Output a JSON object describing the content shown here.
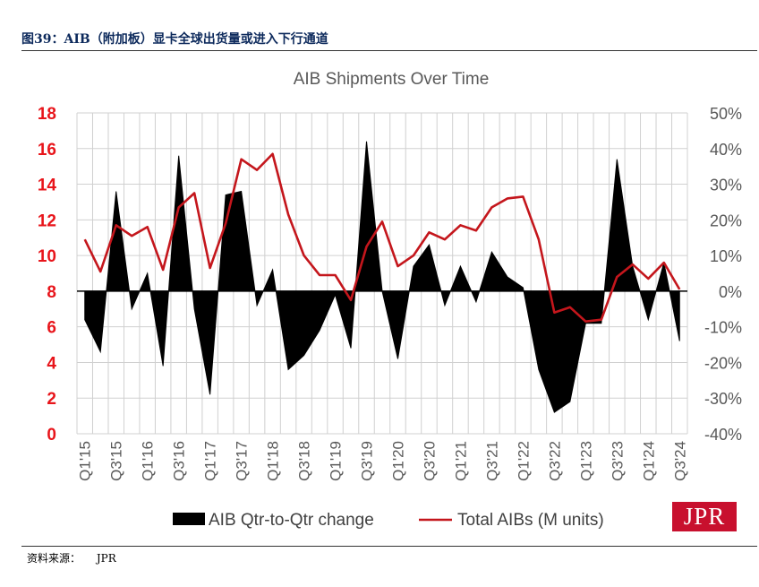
{
  "figure_title": "图39：AIB（附加板）显卡全球出货量或进入下行通道",
  "source_label": "资料来源：",
  "source_value": "JPR",
  "logo_text": "JPR",
  "colors": {
    "left_axis": "#e8151b",
    "line": "#c4161c",
    "area": "#000000",
    "grid": "#d0d0d0",
    "text": "#595959"
  },
  "chart_data": {
    "type": "area+line",
    "title": "AIB Shipments Over Time",
    "grid": true,
    "legend_position": "bottom",
    "left_axis": {
      "ylim": [
        0,
        18
      ],
      "ticks": [
        "0",
        "2",
        "4",
        "6",
        "8",
        "10",
        "12",
        "14",
        "16",
        "18"
      ]
    },
    "right_axis": {
      "ylim": [
        -40,
        50
      ],
      "ticks": [
        "-40%",
        "-30%",
        "-20%",
        "-10%",
        "0%",
        "10%",
        "20%",
        "30%",
        "40%",
        "50%"
      ]
    },
    "x_tick_labels": [
      "Q1'15",
      "Q3'15",
      "Q1'16",
      "Q3'16",
      "Q1'17",
      "Q3'17",
      "Q1'18",
      "Q3'18",
      "Q1'19",
      "Q3'19",
      "Q1'20",
      "Q3'20",
      "Q1'21",
      "Q3'21",
      "Q1'22",
      "Q3'22",
      "Q1'23",
      "Q3'23",
      "Q1'24",
      "Q3'24"
    ],
    "x": [
      "Q1'15",
      "Q2'15",
      "Q3'15",
      "Q4'15",
      "Q1'16",
      "Q2'16",
      "Q3'16",
      "Q4'16",
      "Q1'17",
      "Q2'17",
      "Q3'17",
      "Q4'17",
      "Q1'18",
      "Q2'18",
      "Q3'18",
      "Q4'18",
      "Q1'19",
      "Q2'19",
      "Q3'19",
      "Q4'19",
      "Q1'20",
      "Q2'20",
      "Q3'20",
      "Q4'20",
      "Q1'21",
      "Q2'21",
      "Q3'21",
      "Q4'21",
      "Q1'22",
      "Q2'22",
      "Q3'22",
      "Q4'22",
      "Q1'23",
      "Q2'23",
      "Q3'23",
      "Q4'23",
      "Q1'24",
      "Q2'24",
      "Q3'24"
    ],
    "series": [
      {
        "name": "AIB Qtr-to-Qtr change",
        "kind": "area",
        "axis": "right",
        "values": [
          -8,
          -17,
          28,
          -5,
          5,
          -21,
          38,
          -5,
          -29,
          27,
          28,
          -4,
          6,
          -22,
          -18,
          -11,
          -1,
          -16,
          42,
          0,
          -19,
          7,
          13,
          -4,
          7,
          -3,
          11,
          4,
          1,
          -22,
          -34,
          -31,
          -9,
          -9,
          37,
          7,
          -8,
          8,
          -14
        ]
      },
      {
        "name": "Total AIBs (M units)",
        "kind": "line",
        "axis": "left",
        "values": [
          10.9,
          9.1,
          11.7,
          11.1,
          11.6,
          9.2,
          12.7,
          13.5,
          9.3,
          11.8,
          15.4,
          14.8,
          15.7,
          12.3,
          10.0,
          8.9,
          8.9,
          7.5,
          10.5,
          11.9,
          9.4,
          10.0,
          11.3,
          10.9,
          11.7,
          11.4,
          12.7,
          13.2,
          13.3,
          10.9,
          6.8,
          7.1,
          6.3,
          6.4,
          8.8,
          9.5,
          8.7,
          9.6,
          8.1
        ]
      }
    ]
  }
}
